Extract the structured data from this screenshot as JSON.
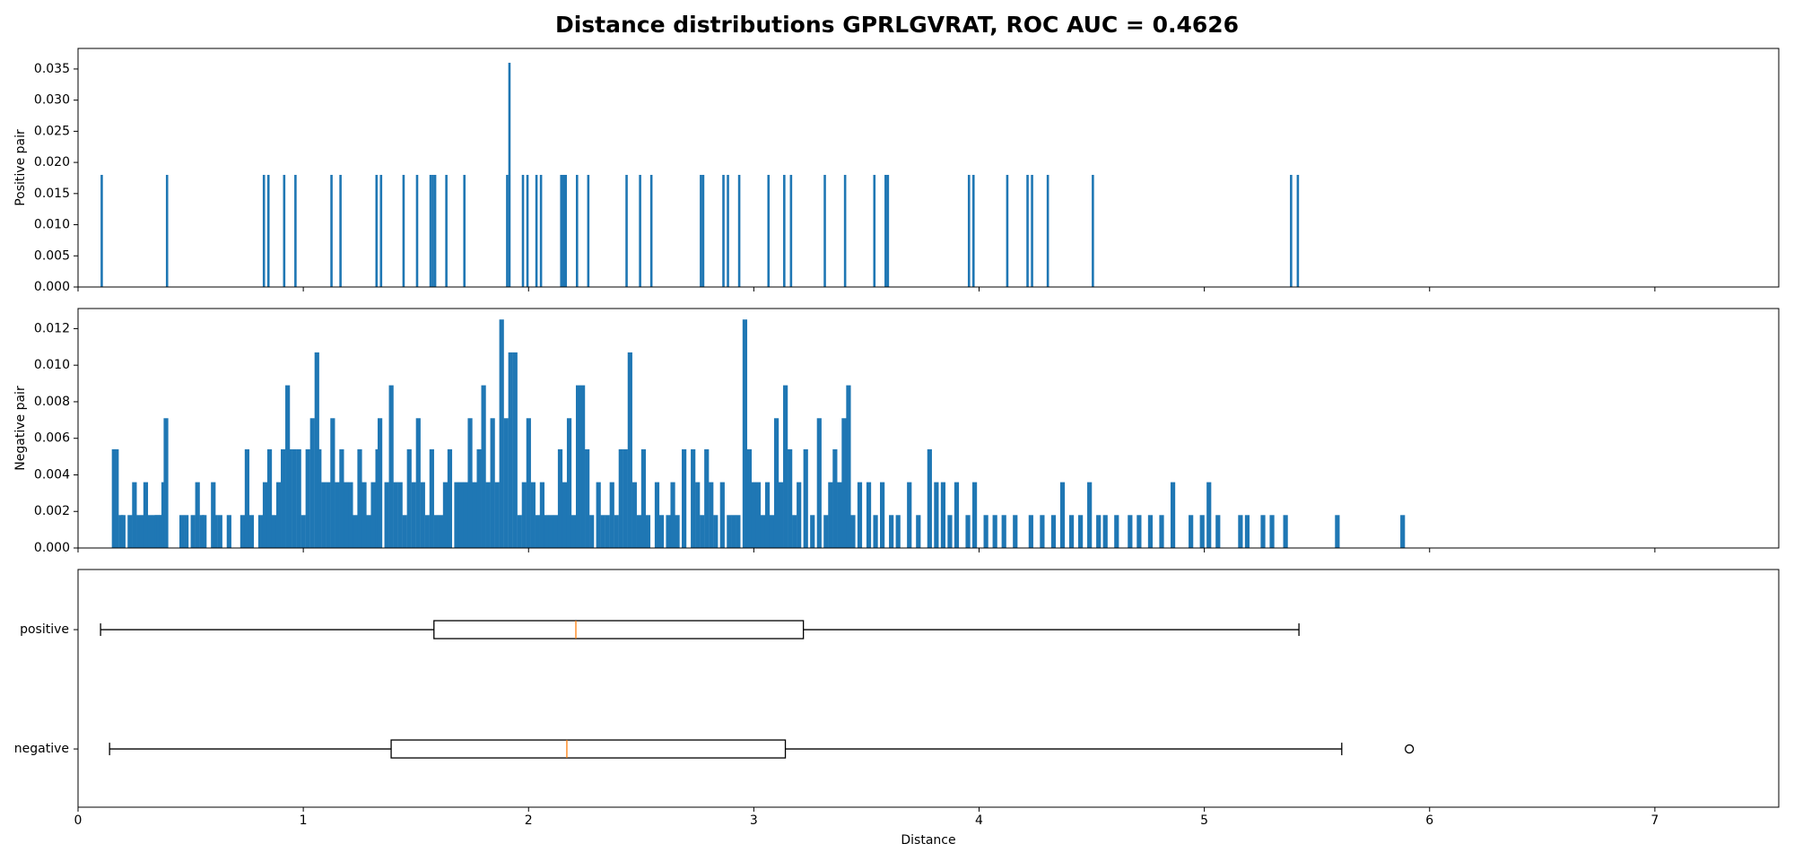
{
  "chart_data": [
    {
      "type": "bar",
      "title": "Distance distributions GPRLGVRAT, ROC AUC = 0.4626",
      "y_label": "Positive pair",
      "color": "#1f77b4",
      "x": [
        0.1,
        0.39,
        0.82,
        0.84,
        0.91,
        0.96,
        1.12,
        1.16,
        1.32,
        1.34,
        1.44,
        1.5,
        1.56,
        1.57,
        1.58,
        1.63,
        1.71,
        1.9,
        1.91,
        1.97,
        1.99,
        2.03,
        2.05,
        2.14,
        2.15,
        2.16,
        2.21,
        2.26,
        2.43,
        2.49,
        2.54,
        2.76,
        2.77,
        2.86,
        2.88,
        2.93,
        3.06,
        3.13,
        3.16,
        3.31,
        3.4,
        3.53,
        3.58,
        3.59,
        3.95,
        3.97,
        4.12,
        4.21,
        4.23,
        4.3,
        4.5,
        5.38,
        5.41
      ],
      "values": [
        0.018,
        0.018,
        0.018,
        0.018,
        0.018,
        0.018,
        0.018,
        0.018,
        0.018,
        0.018,
        0.018,
        0.018,
        0.018,
        0.018,
        0.018,
        0.018,
        0.018,
        0.018,
        0.036,
        0.018,
        0.018,
        0.018,
        0.018,
        0.018,
        0.018,
        0.018,
        0.018,
        0.018,
        0.018,
        0.018,
        0.018,
        0.018,
        0.018,
        0.018,
        0.018,
        0.018,
        0.018,
        0.018,
        0.018,
        0.018,
        0.018,
        0.018,
        0.018,
        0.018,
        0.018,
        0.018,
        0.018,
        0.018,
        0.018,
        0.018,
        0.018,
        0.018,
        0.018
      ],
      "xlim": [
        0,
        7.55
      ],
      "ylim": [
        0,
        0.0383
      ],
      "yticks": [
        {
          "value": 0,
          "label": "0.000"
        },
        {
          "value": 0.005,
          "label": "0.005"
        },
        {
          "value": 0.01,
          "label": "0.010"
        },
        {
          "value": 0.015,
          "label": "0.015"
        },
        {
          "value": 0.02,
          "label": "0.020"
        },
        {
          "value": 0.025,
          "label": "0.025"
        },
        {
          "value": 0.03,
          "label": "0.030"
        },
        {
          "value": 0.035,
          "label": "0.035"
        }
      ]
    },
    {
      "type": "bar",
      "y_label": "Negative pair",
      "color": "#1f77b4",
      "x": [
        0.15,
        0.16,
        0.18,
        0.19,
        0.22,
        0.24,
        0.26,
        0.28,
        0.29,
        0.31,
        0.33,
        0.34,
        0.35,
        0.36,
        0.37,
        0.38,
        0.45,
        0.47,
        0.5,
        0.52,
        0.54,
        0.55,
        0.59,
        0.6,
        0.62,
        0.66,
        0.72,
        0.74,
        0.76,
        0.8,
        0.82,
        0.84,
        0.86,
        0.88,
        0.9,
        0.92,
        0.93,
        0.95,
        0.97,
        0.99,
        1.01,
        1.03,
        1.05,
        1.06,
        1.08,
        1.1,
        1.12,
        1.14,
        1.16,
        1.18,
        1.2,
        1.22,
        1.24,
        1.26,
        1.28,
        1.3,
        1.32,
        1.33,
        1.36,
        1.38,
        1.4,
        1.42,
        1.44,
        1.46,
        1.48,
        1.5,
        1.52,
        1.54,
        1.56,
        1.58,
        1.6,
        1.62,
        1.64,
        1.67,
        1.69,
        1.71,
        1.73,
        1.75,
        1.77,
        1.79,
        1.81,
        1.83,
        1.85,
        1.87,
        1.89,
        1.91,
        1.93,
        1.95,
        1.97,
        1.99,
        2.01,
        2.03,
        2.05,
        2.07,
        2.09,
        2.11,
        2.13,
        2.15,
        2.17,
        2.19,
        2.21,
        2.23,
        2.25,
        2.27,
        2.3,
        2.32,
        2.34,
        2.36,
        2.38,
        2.4,
        2.42,
        2.44,
        2.46,
        2.48,
        2.5,
        2.52,
        2.56,
        2.58,
        2.61,
        2.63,
        2.65,
        2.68,
        2.72,
        2.74,
        2.76,
        2.78,
        2.8,
        2.82,
        2.85,
        2.88,
        2.9,
        2.92,
        2.95,
        2.97,
        2.99,
        3.01,
        3.03,
        3.05,
        3.07,
        3.09,
        3.11,
        3.13,
        3.15,
        3.17,
        3.19,
        3.22,
        3.25,
        3.28,
        3.31,
        3.33,
        3.35,
        3.37,
        3.39,
        3.41,
        3.43,
        3.46,
        3.5,
        3.53,
        3.56,
        3.6,
        3.63,
        3.68,
        3.72,
        3.77,
        3.8,
        3.83,
        3.86,
        3.89,
        3.94,
        3.97,
        4.02,
        4.06,
        4.1,
        4.15,
        4.22,
        4.27,
        4.32,
        4.36,
        4.4,
        4.44,
        4.48,
        4.52,
        4.55,
        4.6,
        4.66,
        4.7,
        4.75,
        4.8,
        4.85,
        4.93,
        4.98,
        5.01,
        5.05,
        5.15,
        5.18,
        5.25,
        5.29,
        5.35,
        5.58,
        5.87
      ],
      "values": [
        0.0054,
        0.0054,
        0.0018,
        0.0018,
        0.0018,
        0.0036,
        0.0018,
        0.0018,
        0.0036,
        0.0018,
        0.0018,
        0.0018,
        0.0018,
        0.0018,
        0.0036,
        0.0071,
        0.0018,
        0.0018,
        0.0018,
        0.0036,
        0.0018,
        0.0018,
        0.0036,
        0.0018,
        0.0018,
        0.0018,
        0.0018,
        0.0054,
        0.0018,
        0.0018,
        0.0036,
        0.0054,
        0.0018,
        0.0036,
        0.0054,
        0.0089,
        0.0054,
        0.0054,
        0.0054,
        0.0018,
        0.0054,
        0.0071,
        0.0107,
        0.0054,
        0.0036,
        0.0036,
        0.0071,
        0.0036,
        0.0054,
        0.0036,
        0.0036,
        0.0018,
        0.0054,
        0.0036,
        0.0018,
        0.0036,
        0.0054,
        0.0071,
        0.0036,
        0.0089,
        0.0036,
        0.0036,
        0.0018,
        0.0054,
        0.0036,
        0.0071,
        0.0036,
        0.0018,
        0.0054,
        0.0018,
        0.0018,
        0.0036,
        0.0054,
        0.0036,
        0.0036,
        0.0036,
        0.0071,
        0.0036,
        0.0054,
        0.0089,
        0.0036,
        0.0071,
        0.0036,
        0.0125,
        0.0071,
        0.0107,
        0.0107,
        0.0018,
        0.0036,
        0.0071,
        0.0036,
        0.0018,
        0.0036,
        0.0018,
        0.0018,
        0.0018,
        0.0054,
        0.0036,
        0.0071,
        0.0018,
        0.0089,
        0.0089,
        0.0054,
        0.0018,
        0.0036,
        0.0018,
        0.0018,
        0.0036,
        0.0018,
        0.0054,
        0.0054,
        0.0107,
        0.0036,
        0.0018,
        0.0054,
        0.0018,
        0.0036,
        0.0018,
        0.0018,
        0.0036,
        0.0018,
        0.0054,
        0.0054,
        0.0036,
        0.0018,
        0.0054,
        0.0036,
        0.0018,
        0.0036,
        0.0018,
        0.0018,
        0.0018,
        0.0125,
        0.0054,
        0.0036,
        0.0036,
        0.0018,
        0.0036,
        0.0018,
        0.0071,
        0.0036,
        0.0089,
        0.0054,
        0.0018,
        0.0036,
        0.0054,
        0.0018,
        0.0071,
        0.0018,
        0.0036,
        0.0054,
        0.0036,
        0.0071,
        0.0089,
        0.0018,
        0.0036,
        0.0036,
        0.0018,
        0.0036,
        0.0018,
        0.0018,
        0.0036,
        0.0018,
        0.0054,
        0.0036,
        0.0036,
        0.0018,
        0.0036,
        0.0018,
        0.0036,
        0.0018,
        0.0018,
        0.0018,
        0.0018,
        0.0018,
        0.0018,
        0.0018,
        0.0036,
        0.0018,
        0.0018,
        0.0036,
        0.0018,
        0.0018,
        0.0018,
        0.0018,
        0.0018,
        0.0018,
        0.0018,
        0.0036,
        0.0018,
        0.0018,
        0.0036,
        0.0018,
        0.0018,
        0.0018,
        0.0018,
        0.0018,
        0.0018,
        0.0018,
        0.0018
      ],
      "xlim": [
        0,
        7.55
      ],
      "ylim": [
        0,
        0.0131
      ],
      "yticks": [
        {
          "value": 0,
          "label": "0.000"
        },
        {
          "value": 0.002,
          "label": "0.002"
        },
        {
          "value": 0.004,
          "label": "0.004"
        },
        {
          "value": 0.006,
          "label": "0.006"
        },
        {
          "value": 0.008,
          "label": "0.008"
        },
        {
          "value": 0.01,
          "label": "0.010"
        },
        {
          "value": 0.012,
          "label": "0.012"
        }
      ]
    },
    {
      "type": "box",
      "x_label": "Distance",
      "box_color": "#000000",
      "median_color": "#ff7f0e",
      "series": [
        {
          "name": "positive",
          "whislo": 0.1,
          "q1": 1.58,
          "med": 2.21,
          "q3": 3.22,
          "whishi": 5.42,
          "fliers": []
        },
        {
          "name": "negative",
          "whislo": 0.14,
          "q1": 1.39,
          "med": 2.17,
          "q3": 3.14,
          "whishi": 5.61,
          "fliers": [
            5.91
          ]
        }
      ],
      "xlim": [
        0,
        7.55
      ],
      "xticks": [
        0,
        1,
        2,
        3,
        4,
        5,
        6,
        7
      ]
    }
  ]
}
